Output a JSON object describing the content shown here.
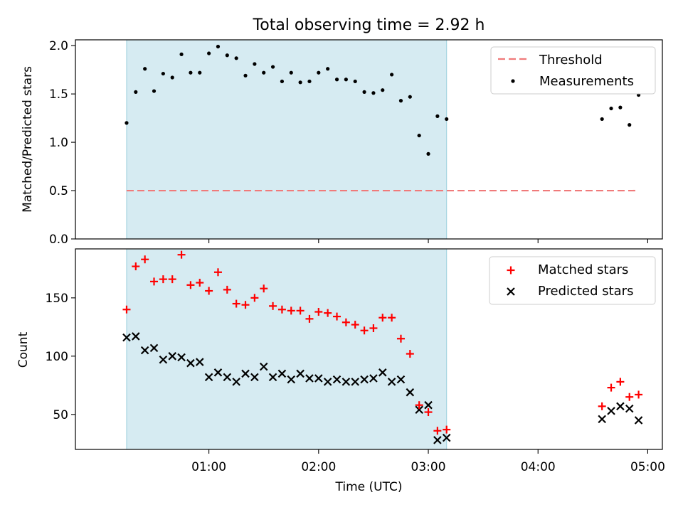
{
  "chart_data": [
    {
      "type": "scatter",
      "title": "Total observing time = 2.92 h",
      "ylabel": "Matched/Predicted stars",
      "xlabel": "",
      "ylim": [
        0,
        2.06
      ],
      "yticks": [
        "0.0",
        "0.5",
        "1.0",
        "1.5",
        "2.0"
      ],
      "shaded_interval": [
        "00:15",
        "03:10"
      ],
      "legend_position": "upper right",
      "threshold": {
        "name": "Threshold",
        "value": 0.5,
        "from": "00:15",
        "to": "04:55",
        "color": "#f07a7a",
        "style": "dashed"
      },
      "series": [
        {
          "name": "Measurements",
          "color": "#000000",
          "marker": "dot",
          "x": [
            "00:15",
            "00:20",
            "00:25",
            "00:30",
            "00:35",
            "00:40",
            "00:45",
            "00:50",
            "00:55",
            "01:00",
            "01:05",
            "01:10",
            "01:15",
            "01:20",
            "01:25",
            "01:30",
            "01:35",
            "01:40",
            "01:45",
            "01:50",
            "01:55",
            "02:00",
            "02:05",
            "02:10",
            "02:15",
            "02:20",
            "02:25",
            "02:30",
            "02:35",
            "02:40",
            "02:45",
            "02:50",
            "02:55",
            "03:00",
            "03:05",
            "03:10",
            "04:35",
            "04:40",
            "04:45",
            "04:50",
            "04:55"
          ],
          "values": [
            1.2,
            1.52,
            1.76,
            1.53,
            1.71,
            1.67,
            1.91,
            1.72,
            1.72,
            1.92,
            1.99,
            1.9,
            1.87,
            1.69,
            1.81,
            1.72,
            1.78,
            1.63,
            1.72,
            1.62,
            1.63,
            1.72,
            1.76,
            1.65,
            1.65,
            1.63,
            1.52,
            1.51,
            1.54,
            1.7,
            1.43,
            1.47,
            1.07,
            0.88,
            1.27,
            1.24,
            1.24,
            1.35,
            1.36,
            1.18,
            1.49
          ]
        }
      ]
    },
    {
      "type": "scatter",
      "title": "",
      "xlabel": "Time (UTC)",
      "ylabel": "Count",
      "ylim": [
        20,
        192
      ],
      "yticks": [
        "50",
        "100",
        "150"
      ],
      "xlim": [
        "-00:13",
        "05:08"
      ],
      "xticks": [
        "01:00",
        "02:00",
        "03:00",
        "04:00",
        "05:00"
      ],
      "shaded_interval": [
        "00:15",
        "03:10"
      ],
      "legend_position": "upper right",
      "series": [
        {
          "name": "Matched stars",
          "color": "#ff0000",
          "marker": "plus",
          "x": [
            "00:15",
            "00:20",
            "00:25",
            "00:30",
            "00:35",
            "00:40",
            "00:45",
            "00:50",
            "00:55",
            "01:00",
            "01:05",
            "01:10",
            "01:15",
            "01:20",
            "01:25",
            "01:30",
            "01:35",
            "01:40",
            "01:45",
            "01:50",
            "01:55",
            "02:00",
            "02:05",
            "02:10",
            "02:15",
            "02:20",
            "02:25",
            "02:30",
            "02:35",
            "02:40",
            "02:45",
            "02:50",
            "02:55",
            "03:00",
            "03:05",
            "03:10",
            "04:35",
            "04:40",
            "04:45",
            "04:50",
            "04:55"
          ],
          "values": [
            140,
            177,
            183,
            164,
            166,
            166,
            187,
            161,
            163,
            156,
            172,
            157,
            145,
            144,
            150,
            158,
            143,
            140,
            139,
            139,
            132,
            138,
            137,
            134,
            129,
            127,
            122,
            124,
            133,
            133,
            115,
            102,
            58,
            52,
            36,
            37,
            57,
            73,
            78,
            65,
            67
          ]
        },
        {
          "name": "Predicted stars",
          "color": "#000000",
          "marker": "x",
          "x": [
            "00:15",
            "00:20",
            "00:25",
            "00:30",
            "00:35",
            "00:40",
            "00:45",
            "00:50",
            "00:55",
            "01:00",
            "01:05",
            "01:10",
            "01:15",
            "01:20",
            "01:25",
            "01:30",
            "01:35",
            "01:40",
            "01:45",
            "01:50",
            "01:55",
            "02:00",
            "02:05",
            "02:10",
            "02:15",
            "02:20",
            "02:25",
            "02:30",
            "02:35",
            "02:40",
            "02:45",
            "02:50",
            "02:55",
            "03:00",
            "03:05",
            "03:10",
            "04:35",
            "04:40",
            "04:45",
            "04:50",
            "04:55"
          ],
          "values": [
            116,
            117,
            105,
            107,
            97,
            100,
            99,
            94,
            95,
            82,
            86,
            82,
            78,
            85,
            82,
            91,
            82,
            85,
            80,
            85,
            81,
            81,
            78,
            80,
            78,
            78,
            80,
            81,
            86,
            78,
            80,
            69,
            54,
            58,
            28,
            30,
            46,
            53,
            57,
            55,
            45
          ]
        }
      ]
    }
  ]
}
